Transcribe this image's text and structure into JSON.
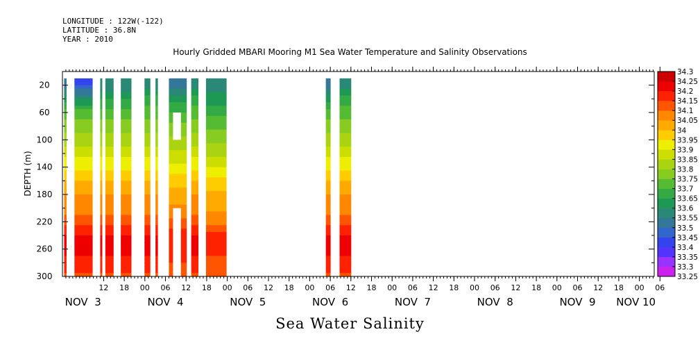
{
  "header": {
    "longitude": "LONGITUDE : 122W(-122)",
    "latitude": "LATITUDE : 36.8N",
    "year": "YEAR : 2010"
  },
  "chart_data": {
    "type": "heatmap",
    "title": "Hourly Gridded MBARI Mooring M1 Sea Water Temperature and Salinity Observations",
    "variable_label": "Sea Water Salinity",
    "ylabel": "DEPTH (m)",
    "y_axis": {
      "ticks": [
        20,
        60,
        100,
        140,
        180,
        220,
        260,
        300
      ],
      "range": [
        0,
        300
      ],
      "inverted": true
    },
    "x_axis": {
      "start_hour": 0,
      "end_hour": 180,
      "hour_ticks": [
        {
          "hour": 12,
          "label": "12"
        },
        {
          "hour": 18,
          "label": "18"
        },
        {
          "hour": 24,
          "label": "00"
        },
        {
          "hour": 30,
          "label": "06"
        },
        {
          "hour": 36,
          "label": "12"
        },
        {
          "hour": 42,
          "label": "18"
        },
        {
          "hour": 48,
          "label": "00"
        },
        {
          "hour": 54,
          "label": "06"
        },
        {
          "hour": 60,
          "label": "12"
        },
        {
          "hour": 66,
          "label": "18"
        },
        {
          "hour": 72,
          "label": "00"
        },
        {
          "hour": 78,
          "label": "06"
        },
        {
          "hour": 84,
          "label": "12"
        },
        {
          "hour": 90,
          "label": "18"
        },
        {
          "hour": 96,
          "label": "00"
        },
        {
          "hour": 102,
          "label": "06"
        },
        {
          "hour": 108,
          "label": "12"
        },
        {
          "hour": 114,
          "label": "18"
        },
        {
          "hour": 120,
          "label": "00"
        },
        {
          "hour": 126,
          "label": "06"
        },
        {
          "hour": 132,
          "label": "12"
        },
        {
          "hour": 138,
          "label": "18"
        },
        {
          "hour": 144,
          "label": "00"
        },
        {
          "hour": 150,
          "label": "06"
        },
        {
          "hour": 156,
          "label": "12"
        },
        {
          "hour": 162,
          "label": "18"
        },
        {
          "hour": 168,
          "label": "00"
        },
        {
          "hour": 174,
          "label": "06"
        }
      ],
      "day_labels": [
        {
          "hour": 6,
          "label": "NOV  3"
        },
        {
          "hour": 30,
          "label": "NOV  4"
        },
        {
          "hour": 54,
          "label": "NOV  5"
        },
        {
          "hour": 78,
          "label": "NOV  6"
        },
        {
          "hour": 102,
          "label": "NOV  7"
        },
        {
          "hour": 126,
          "label": "NOV  8"
        },
        {
          "hour": 150,
          "label": "NOV  9"
        },
        {
          "hour": 167,
          "label": "NOV 10"
        }
      ]
    },
    "colorbar": {
      "levels": [
        33.25,
        33.3,
        33.35,
        33.4,
        33.45,
        33.5,
        33.55,
        33.6,
        33.65,
        33.7,
        33.75,
        33.8,
        33.85,
        33.9,
        33.95,
        34,
        34.05,
        34.1,
        34.15,
        34.2,
        34.25,
        34.3
      ],
      "labels": [
        "33.25",
        "33.3",
        "33.35",
        "33.4",
        "33.45",
        "33.5",
        "33.55",
        "33.6",
        "33.65",
        "33.7",
        "33.75",
        "33.8",
        "33.85",
        "33.9",
        "33.95",
        "34",
        "34.05",
        "34.1",
        "34.15",
        "34.2",
        "34.25",
        "34.3"
      ],
      "colors": [
        "#cc22ee",
        "#9933ff",
        "#5533ff",
        "#3344ee",
        "#3366cc",
        "#337799",
        "#2a8877",
        "#1e9955",
        "#33aa44",
        "#55bb33",
        "#88cc22",
        "#aad411",
        "#ccdd00",
        "#eeee00",
        "#ffcc00",
        "#ffaa00",
        "#ff8800",
        "#ff5500",
        "#ff2200",
        "#ee0000",
        "#cc0000"
      ]
    },
    "profile": {
      "depths": [
        20,
        40,
        60,
        80,
        100,
        120,
        140,
        160,
        180,
        200,
        220,
        240,
        260,
        280,
        300
      ],
      "salinity": [
        33.57,
        33.66,
        33.72,
        33.78,
        33.83,
        33.88,
        33.94,
        34.0,
        34.05,
        34.08,
        34.13,
        34.2,
        34.22,
        34.17,
        34.14
      ]
    },
    "data_segments": [
      {
        "start": 0.5,
        "end": 1.2,
        "surface": 33.5,
        "shift": 0
      },
      {
        "start": 3.5,
        "end": 8.8,
        "surface": 33.4,
        "shift": 0
      },
      {
        "start": 11.0,
        "end": 11.6,
        "surface": 33.55,
        "shift": 0
      },
      {
        "start": 12.5,
        "end": 14.9,
        "surface": 33.55,
        "shift": 0
      },
      {
        "start": 17.0,
        "end": 20.1,
        "surface": 33.55,
        "shift": 0
      },
      {
        "start": 23.9,
        "end": 25.6,
        "surface": 33.6,
        "shift": 0
      },
      {
        "start": 27.1,
        "end": 27.8,
        "surface": 33.6,
        "shift": 0
      },
      {
        "start": 31.0,
        "end": 36.2,
        "surface": 33.55,
        "shift": -0.02
      },
      {
        "start": 37.5,
        "end": 39.6,
        "surface": 33.6,
        "shift": 0
      },
      {
        "start": 41.8,
        "end": 47.8,
        "surface": 33.6,
        "shift": -0.04
      },
      {
        "start": 76.7,
        "end": 78.1,
        "surface": 33.5,
        "shift": 0
      },
      {
        "start": 80.7,
        "end": 84.1,
        "surface": 33.6,
        "shift": 0
      }
    ],
    "missing_boxes": [
      {
        "start": 32.2,
        "end": 34.5,
        "depth_top": 60,
        "depth_bottom": 100
      },
      {
        "start": 32.2,
        "end": 34.5,
        "depth_top": 200,
        "depth_bottom": 300
      }
    ]
  }
}
